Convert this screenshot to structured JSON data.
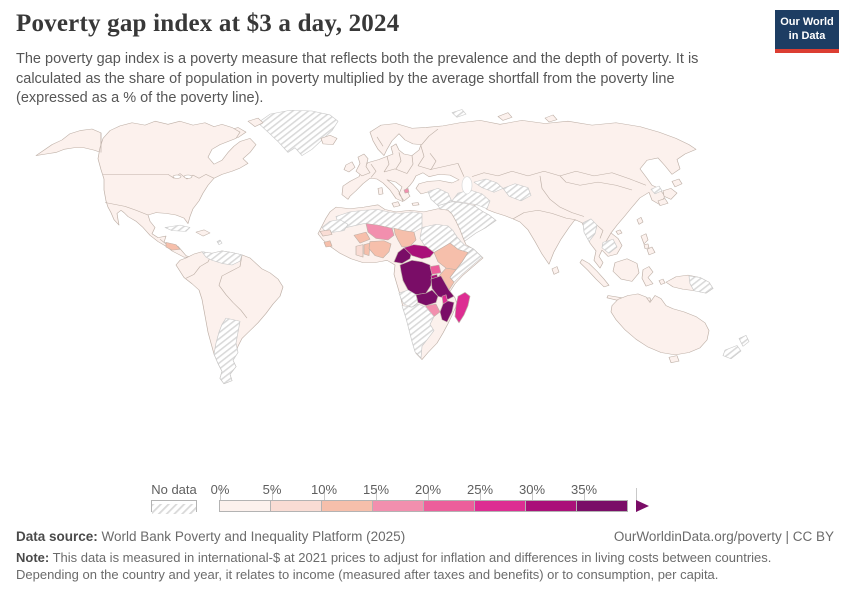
{
  "header": {
    "title": "Poverty gap index at $3 a day, 2024",
    "logo": {
      "line1": "Our World",
      "line2": "in Data",
      "bg_color": "#1d3d63",
      "accent_color": "#dc3e32"
    }
  },
  "subtitle": "The poverty gap index is a poverty measure that reflects both the prevalence and the depth of poverty. It is calculated as the share of population in poverty multiplied by the average shortfall from the poverty line (expressed as a % of the poverty line).",
  "legend": {
    "no_data_label": "No data",
    "bins": [
      {
        "label": "0%",
        "range": "0-5%",
        "color": "#fcf1ed"
      },
      {
        "label": "5%",
        "range": "5-10%",
        "color": "#f9dcd4"
      },
      {
        "label": "10%",
        "range": "10-15%",
        "color": "#f6bfab"
      },
      {
        "label": "15%",
        "range": "15-20%",
        "color": "#f28fae"
      },
      {
        "label": "20%",
        "range": "20-25%",
        "color": "#ec5f9b"
      },
      {
        "label": "25%",
        "range": "25-30%",
        "color": "#dd2d92"
      },
      {
        "label": "30%",
        "range": "30-35%",
        "color": "#aa1079"
      },
      {
        "label": "35%",
        "range": "35%+",
        "color": "#7a0d67"
      }
    ]
  },
  "footer": {
    "source_label": "Data source:",
    "source_text": " World Bank Poverty and Inequality Platform (2025)",
    "link_text": "OurWorldinData.org/poverty | CC BY",
    "note_label": "Note:",
    "note_text": " This data is measured in international-$ at 2021 prices to adjust for inflation and differences in living costs between countries. Depending on the country and year, it relates to income (measured after taxes and benefits) or to consumption, per capita."
  },
  "colors": {
    "land_border": "#bfb1a8",
    "no_data_hatch": "#d9d9d9",
    "ocean": "#ffffff"
  },
  "chart_data": {
    "type": "choropleth_world_map",
    "title": "Poverty gap index at $3 a day, 2024",
    "unit": "% of the poverty line",
    "legend_bins": [
      {
        "range": "0-5%",
        "color": "#fcf1ed"
      },
      {
        "range": "5-10%",
        "color": "#f9dcd4"
      },
      {
        "range": "10-15%",
        "color": "#f6bfab"
      },
      {
        "range": "15-20%",
        "color": "#f28fae"
      },
      {
        "range": "20-25%",
        "color": "#ec5f9b"
      },
      {
        "range": "25-30%",
        "color": "#dd2d92"
      },
      {
        "range": "30-35%",
        "color": "#aa1079"
      },
      {
        "range": "35%+",
        "color": "#7a0d67"
      }
    ],
    "observed_categories": {
      "35%+": [
        "Democratic Republic of Congo",
        "Republic of the Congo",
        "Cameroon",
        "Tanzania",
        "Zambia",
        "Mozambique"
      ],
      "30-35%": [
        "Central African Republic",
        "Rwanda",
        "Burundi"
      ],
      "25-30%": [
        "Madagascar",
        "Malawi"
      ],
      "20-25%": [
        "Uganda"
      ],
      "15-20%": [
        "Niger",
        "Zimbabwe"
      ],
      "10-15%": [
        "Chad",
        "Nigeria",
        "Ethiopia",
        "Kenya",
        "Burkina Faso",
        "Benin",
        "Togo",
        "Sierra Leone",
        "Honduras"
      ],
      "5-10%": [
        "Senegal",
        "Ghana",
        "Mali"
      ],
      "0-5%": [
        "United States",
        "Canada",
        "Mexico",
        "Brazil",
        "most of Europe",
        "Russia",
        "China",
        "India",
        "Indonesia",
        "Australia",
        "most of Asia and the Americas"
      ],
      "no_data": [
        "Greenland",
        "Venezuela",
        "Argentina",
        "Cuba",
        "Algeria",
        "Libya",
        "Western Sahara",
        "Mauritania",
        "Sudan",
        "Eritrea",
        "Somalia",
        "Angola",
        "Namibia",
        "Botswana",
        "South Africa",
        "Saudi Arabia",
        "Yemen",
        "Oman",
        "Syria",
        "Iraq",
        "Iran",
        "Afghanistan",
        "Turkmenistan",
        "Myanmar",
        "Cambodia",
        "North Korea",
        "Papua New Guinea",
        "New Zealand"
      ]
    }
  }
}
